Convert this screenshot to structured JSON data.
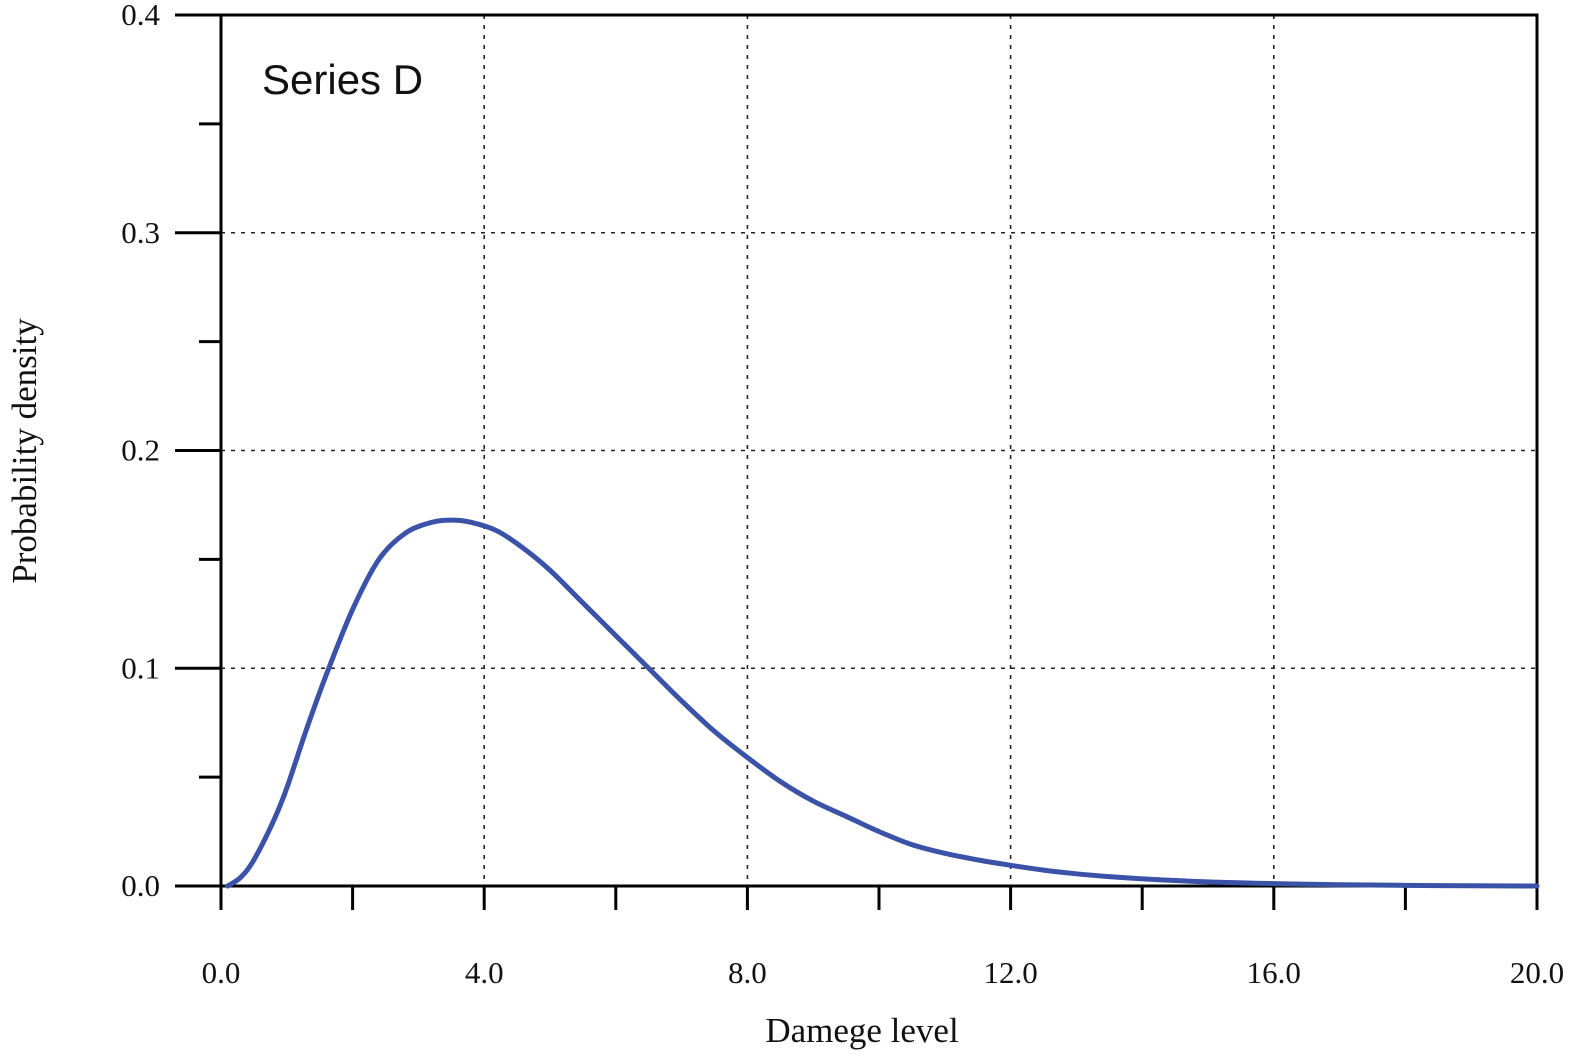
{
  "chart_data": {
    "type": "line",
    "xlabel": "Damege level",
    "ylabel": "Probability density",
    "annotation": "Series D",
    "xlim": [
      0,
      20
    ],
    "ylim": [
      0,
      0.4
    ],
    "x_ticks": [
      "0.0",
      "4.0",
      "8.0",
      "12.0",
      "16.0",
      "20.0"
    ],
    "y_ticks": [
      "0.0",
      "0.1",
      "0.2",
      "0.3",
      "0.4"
    ],
    "x_tick_values": [
      0,
      4,
      8,
      12,
      16,
      20
    ],
    "y_tick_values": [
      0,
      0.1,
      0.2,
      0.3,
      0.4
    ],
    "x_minor_tick_values": [
      2,
      6,
      10,
      14,
      18
    ],
    "y_minor_tick_values": [
      0.05,
      0.15,
      0.25,
      0.35
    ],
    "grid": true,
    "series": [
      {
        "color": "#3a52a8",
        "x": [
          0.1,
          0.3,
          0.5,
          0.8,
          1.0,
          1.3,
          1.6,
          2.0,
          2.4,
          2.8,
          3.2,
          3.5,
          3.8,
          4.2,
          4.6,
          5.0,
          5.5,
          6.0,
          6.5,
          7.0,
          7.5,
          8.0,
          8.5,
          9.0,
          9.5,
          10.0,
          10.5,
          11.0,
          11.5,
          12.0,
          12.5,
          13.0,
          13.5,
          14.0,
          15.0,
          16.0,
          17.0,
          18.0,
          19.0,
          20.0
        ],
        "y": [
          0.0,
          0.004,
          0.012,
          0.03,
          0.045,
          0.072,
          0.097,
          0.127,
          0.15,
          0.162,
          0.167,
          0.168,
          0.167,
          0.163,
          0.155,
          0.145,
          0.13,
          0.115,
          0.1,
          0.085,
          0.071,
          0.059,
          0.048,
          0.039,
          0.032,
          0.025,
          0.019,
          0.015,
          0.012,
          0.0095,
          0.0073,
          0.0056,
          0.0043,
          0.0033,
          0.0019,
          0.0011,
          0.0006,
          0.0003,
          0.0001,
          0.0
        ]
      }
    ]
  }
}
